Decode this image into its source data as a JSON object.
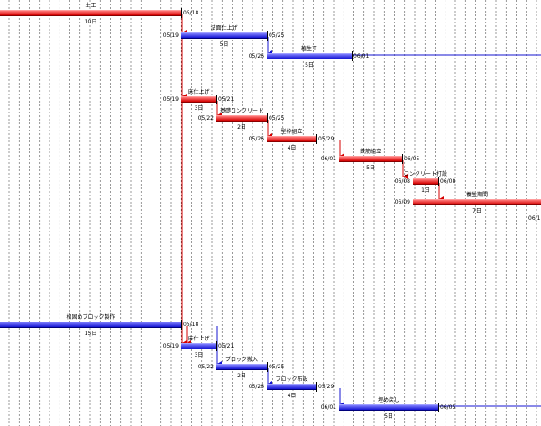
{
  "colors": {
    "critical": "#d40000",
    "normal": "#1414d2",
    "grid": "#555555"
  },
  "tasks": [
    {
      "name": "土工",
      "start": "",
      "end": "05/18",
      "duration": "10日",
      "color": "critical"
    },
    {
      "name": "法面仕上げ",
      "start": "05/19",
      "end": "05/25",
      "duration": "5日",
      "color": "normal"
    },
    {
      "name": "植生工",
      "start": "05/26",
      "end": "06/01",
      "duration": "5日",
      "color": "normal"
    },
    {
      "name": "床仕上げ",
      "start": "05/19",
      "end": "05/21",
      "duration": "3日",
      "color": "critical"
    },
    {
      "name": "基礎コンクリート",
      "start": "05/22",
      "end": "05/25",
      "duration": "2日",
      "color": "critical"
    },
    {
      "name": "型枠組立",
      "start": "05/26",
      "end": "05/29",
      "duration": "4日",
      "color": "critical"
    },
    {
      "name": "鉄筋組立",
      "start": "06/01",
      "end": "06/05",
      "duration": "5日",
      "color": "critical"
    },
    {
      "name": "コンクリート打設",
      "start": "06/08",
      "end": "06/08",
      "duration": "1日",
      "color": "critical"
    },
    {
      "name": "養生期間",
      "start": "06/09",
      "end": "06/1",
      "duration": "7日",
      "color": "critical"
    },
    {
      "name": "根固めブロック製作",
      "start": "",
      "end": "05/18",
      "duration": "15日",
      "color": "normal"
    },
    {
      "name": "床仕上げ",
      "start": "05/19",
      "end": "05/21",
      "duration": "3日",
      "color": "normal"
    },
    {
      "name": "ブロック搬入",
      "start": "05/22",
      "end": "05/25",
      "duration": "2日",
      "color": "normal"
    },
    {
      "name": "ブロック布設",
      "start": "05/26",
      "end": "05/29",
      "duration": "4日",
      "color": "normal"
    },
    {
      "name": "埋め戻し",
      "start": "06/01",
      "end": "06/05",
      "duration": "5日",
      "color": "normal"
    }
  ]
}
